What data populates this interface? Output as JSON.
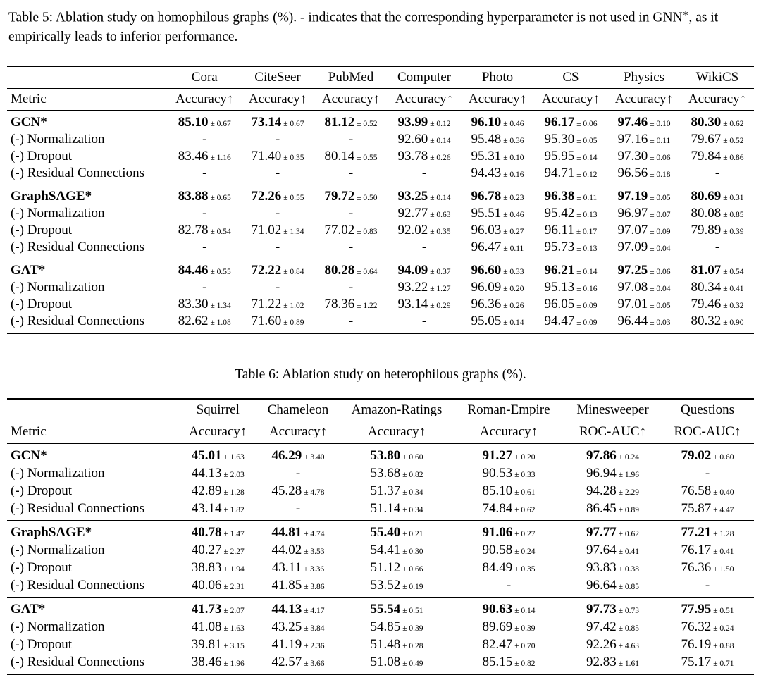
{
  "page": {
    "background": "#ffffff",
    "text_color": "#000000"
  },
  "table5": {
    "caption_pre": "Table 5: Ablation study on homophilous graphs (%). - indicates that the corresponding hyperparameter is not used in GNN",
    "caption_sup": "∗",
    "caption_post": ", as it empirically leads to inferior performance.",
    "metric_label": "Metric",
    "datasets": [
      "Cora",
      "CiteSeer",
      "PubMed",
      "Computer",
      "Photo",
      "CS",
      "Physics",
      "WikiCS"
    ],
    "metrics": [
      "Accuracy↑",
      "Accuracy↑",
      "Accuracy↑",
      "Accuracy↑",
      "Accuracy↑",
      "Accuracy↑",
      "Accuracy↑",
      "Accuracy↑"
    ],
    "groups": [
      {
        "rows": [
          {
            "label": "GCN*",
            "bold": true,
            "cells": [
              [
                "85.10",
                "0.67"
              ],
              [
                "73.14",
                "0.67"
              ],
              [
                "81.12",
                "0.52"
              ],
              [
                "93.99",
                "0.12"
              ],
              [
                "96.10",
                "0.46"
              ],
              [
                "96.17",
                "0.06"
              ],
              [
                "97.46",
                "0.10"
              ],
              [
                "80.30",
                "0.62"
              ]
            ]
          },
          {
            "label": "(-) Normalization",
            "bold": false,
            "cells": [
              [
                "-"
              ],
              [
                "-"
              ],
              [
                "-"
              ],
              [
                "92.60",
                "0.14"
              ],
              [
                "95.48",
                "0.36"
              ],
              [
                "95.30",
                "0.05"
              ],
              [
                "97.16",
                "0.11"
              ],
              [
                "79.67",
                "0.52"
              ]
            ]
          },
          {
            "label": "(-) Dropout",
            "bold": false,
            "cells": [
              [
                "83.46",
                "1.16"
              ],
              [
                "71.40",
                "0.35"
              ],
              [
                "80.14",
                "0.55"
              ],
              [
                "93.78",
                "0.26"
              ],
              [
                "95.31",
                "0.10"
              ],
              [
                "95.95",
                "0.14"
              ],
              [
                "97.30",
                "0.06"
              ],
              [
                "79.84",
                "0.86"
              ]
            ]
          },
          {
            "label": "(-) Residual Connections",
            "bold": false,
            "cells": [
              [
                "-"
              ],
              [
                "-"
              ],
              [
                "-"
              ],
              [
                "-"
              ],
              [
                "94.43",
                "0.16"
              ],
              [
                "94.71",
                "0.12"
              ],
              [
                "96.56",
                "0.18"
              ],
              [
                "-"
              ]
            ]
          }
        ]
      },
      {
        "rows": [
          {
            "label": "GraphSAGE*",
            "bold": true,
            "cells": [
              [
                "83.88",
                "0.65"
              ],
              [
                "72.26",
                "0.55"
              ],
              [
                "79.72",
                "0.50"
              ],
              [
                "93.25",
                "0.14"
              ],
              [
                "96.78",
                "0.23"
              ],
              [
                "96.38",
                "0.11"
              ],
              [
                "97.19",
                "0.05"
              ],
              [
                "80.69",
                "0.31"
              ]
            ]
          },
          {
            "label": "(-) Normalization",
            "bold": false,
            "cells": [
              [
                "-"
              ],
              [
                "-"
              ],
              [
                "-"
              ],
              [
                "92.77",
                "0.63"
              ],
              [
                "95.51",
                "0.46"
              ],
              [
                "95.42",
                "0.13"
              ],
              [
                "96.97",
                "0.07"
              ],
              [
                "80.08",
                "0.85"
              ]
            ]
          },
          {
            "label": "(-) Dropout",
            "bold": false,
            "cells": [
              [
                "82.78",
                "0.54"
              ],
              [
                "71.02",
                "1.34"
              ],
              [
                "77.02",
                "0.83"
              ],
              [
                "92.02",
                "0.35"
              ],
              [
                "96.03",
                "0.27"
              ],
              [
                "96.11",
                "0.17"
              ],
              [
                "97.07",
                "0.09"
              ],
              [
                "79.89",
                "0.39"
              ]
            ]
          },
          {
            "label": "(-) Residual Connections",
            "bold": false,
            "cells": [
              [
                "-"
              ],
              [
                "-"
              ],
              [
                "-"
              ],
              [
                "-"
              ],
              [
                "96.47",
                "0.11"
              ],
              [
                "95.73",
                "0.13"
              ],
              [
                "97.09",
                "0.04"
              ],
              [
                "-"
              ]
            ]
          }
        ]
      },
      {
        "rows": [
          {
            "label": "GAT*",
            "bold": true,
            "cells": [
              [
                "84.46",
                "0.55"
              ],
              [
                "72.22",
                "0.84"
              ],
              [
                "80.28",
                "0.64"
              ],
              [
                "94.09",
                "0.37"
              ],
              [
                "96.60",
                "0.33"
              ],
              [
                "96.21",
                "0.14"
              ],
              [
                "97.25",
                "0.06"
              ],
              [
                "81.07",
                "0.54"
              ]
            ]
          },
          {
            "label": "(-) Normalization",
            "bold": false,
            "cells": [
              [
                "-"
              ],
              [
                "-"
              ],
              [
                "-"
              ],
              [
                "93.22",
                "1.27"
              ],
              [
                "96.09",
                "0.20"
              ],
              [
                "95.13",
                "0.16"
              ],
              [
                "97.08",
                "0.04"
              ],
              [
                "80.34",
                "0.41"
              ]
            ]
          },
          {
            "label": "(-) Dropout",
            "bold": false,
            "cells": [
              [
                "83.30",
                "1.34"
              ],
              [
                "71.22",
                "1.02"
              ],
              [
                "78.36",
                "1.22"
              ],
              [
                "93.14",
                "0.29"
              ],
              [
                "96.36",
                "0.26"
              ],
              [
                "96.05",
                "0.09"
              ],
              [
                "97.01",
                "0.05"
              ],
              [
                "79.46",
                "0.32"
              ]
            ]
          },
          {
            "label": "(-) Residual Connections",
            "bold": false,
            "cells": [
              [
                "82.62",
                "1.08"
              ],
              [
                "71.60",
                "0.89"
              ],
              [
                "-"
              ],
              [
                "-"
              ],
              [
                "95.05",
                "0.14"
              ],
              [
                "94.47",
                "0.09"
              ],
              [
                "96.44",
                "0.03"
              ],
              [
                "80.32",
                "0.90"
              ]
            ]
          }
        ]
      }
    ]
  },
  "table6": {
    "caption": "Table 6: Ablation study on heterophilous graphs (%).",
    "metric_label": "Metric",
    "datasets": [
      "Squirrel",
      "Chameleon",
      "Amazon-Ratings",
      "Roman-Empire",
      "Minesweeper",
      "Questions"
    ],
    "metrics": [
      "Accuracy↑",
      "Accuracy↑",
      "Accuracy↑",
      "Accuracy↑",
      "ROC-AUC↑",
      "ROC-AUC↑"
    ],
    "groups": [
      {
        "rows": [
          {
            "label": "GCN*",
            "bold": true,
            "cells": [
              [
                "45.01",
                "1.63"
              ],
              [
                "46.29",
                "3.40"
              ],
              [
                "53.80",
                "0.60"
              ],
              [
                "91.27",
                "0.20"
              ],
              [
                "97.86",
                "0.24"
              ],
              [
                "79.02",
                "0.60"
              ]
            ]
          },
          {
            "label": "(-) Normalization",
            "bold": false,
            "cells": [
              [
                "44.13",
                "2.03"
              ],
              [
                "-"
              ],
              [
                "53.68",
                "0.82"
              ],
              [
                "90.53",
                "0.33"
              ],
              [
                "96.94",
                "1.96"
              ],
              [
                "-"
              ]
            ]
          },
          {
            "label": "(-) Dropout",
            "bold": false,
            "cells": [
              [
                "42.89",
                "1.28"
              ],
              [
                "45.28",
                "4.78"
              ],
              [
                "51.37",
                "0.34"
              ],
              [
                "85.10",
                "0.61"
              ],
              [
                "94.28",
                "2.29"
              ],
              [
                "76.58",
                "0.40"
              ]
            ]
          },
          {
            "label": "(-) Residual Connections",
            "bold": false,
            "cells": [
              [
                "43.14",
                "1.82"
              ],
              [
                "-"
              ],
              [
                "51.14",
                "0.34"
              ],
              [
                "74.84",
                "0.62"
              ],
              [
                "86.45",
                "0.89"
              ],
              [
                "75.87",
                "4.47"
              ]
            ]
          }
        ]
      },
      {
        "rows": [
          {
            "label": "GraphSAGE*",
            "bold": true,
            "cells": [
              [
                "40.78",
                "1.47"
              ],
              [
                "44.81",
                "4.74"
              ],
              [
                "55.40",
                "0.21"
              ],
              [
                "91.06",
                "0.27"
              ],
              [
                "97.77",
                "0.62"
              ],
              [
                "77.21",
                "1.28"
              ]
            ]
          },
          {
            "label": "(-) Normalization",
            "bold": false,
            "cells": [
              [
                "40.27",
                "2.27"
              ],
              [
                "44.02",
                "3.53"
              ],
              [
                "54.41",
                "0.30"
              ],
              [
                "90.58",
                "0.24"
              ],
              [
                "97.64",
                "0.41"
              ],
              [
                "76.17",
                "0.41"
              ]
            ]
          },
          {
            "label": "(-) Dropout",
            "bold": false,
            "cells": [
              [
                "38.83",
                "1.94"
              ],
              [
                "43.11",
                "3.36"
              ],
              [
                "51.12",
                "0.66"
              ],
              [
                "84.49",
                "0.35"
              ],
              [
                "93.83",
                "0.38"
              ],
              [
                "76.36",
                "1.50"
              ]
            ]
          },
          {
            "label": "(-) Residual Connections",
            "bold": false,
            "cells": [
              [
                "40.06",
                "2.31"
              ],
              [
                "41.85",
                "3.86"
              ],
              [
                "53.52",
                "0.19"
              ],
              [
                "-"
              ],
              [
                "96.64",
                "0.85"
              ],
              [
                "-"
              ]
            ]
          }
        ]
      },
      {
        "rows": [
          {
            "label": "GAT*",
            "bold": true,
            "cells": [
              [
                "41.73",
                "2.07"
              ],
              [
                "44.13",
                "4.17"
              ],
              [
                "55.54",
                "0.51"
              ],
              [
                "90.63",
                "0.14"
              ],
              [
                "97.73",
                "0.73"
              ],
              [
                "77.95",
                "0.51"
              ]
            ]
          },
          {
            "label": "(-) Normalization",
            "bold": false,
            "cells": [
              [
                "41.08",
                "1.63"
              ],
              [
                "43.25",
                "3.84"
              ],
              [
                "54.85",
                "0.39"
              ],
              [
                "89.69",
                "0.39"
              ],
              [
                "97.42",
                "0.85"
              ],
              [
                "76.32",
                "0.24"
              ]
            ]
          },
          {
            "label": "(-) Dropout",
            "bold": false,
            "cells": [
              [
                "39.81",
                "3.15"
              ],
              [
                "41.19",
                "2.36"
              ],
              [
                "51.48",
                "0.28"
              ],
              [
                "82.47",
                "0.70"
              ],
              [
                "92.26",
                "4.63"
              ],
              [
                "76.19",
                "0.88"
              ]
            ]
          },
          {
            "label": "(-) Residual Connections",
            "bold": false,
            "cells": [
              [
                "38.46",
                "1.96"
              ],
              [
                "42.57",
                "3.66"
              ],
              [
                "51.08",
                "0.49"
              ],
              [
                "85.15",
                "0.82"
              ],
              [
                "92.83",
                "1.61"
              ],
              [
                "75.17",
                "0.71"
              ]
            ]
          }
        ]
      }
    ]
  }
}
